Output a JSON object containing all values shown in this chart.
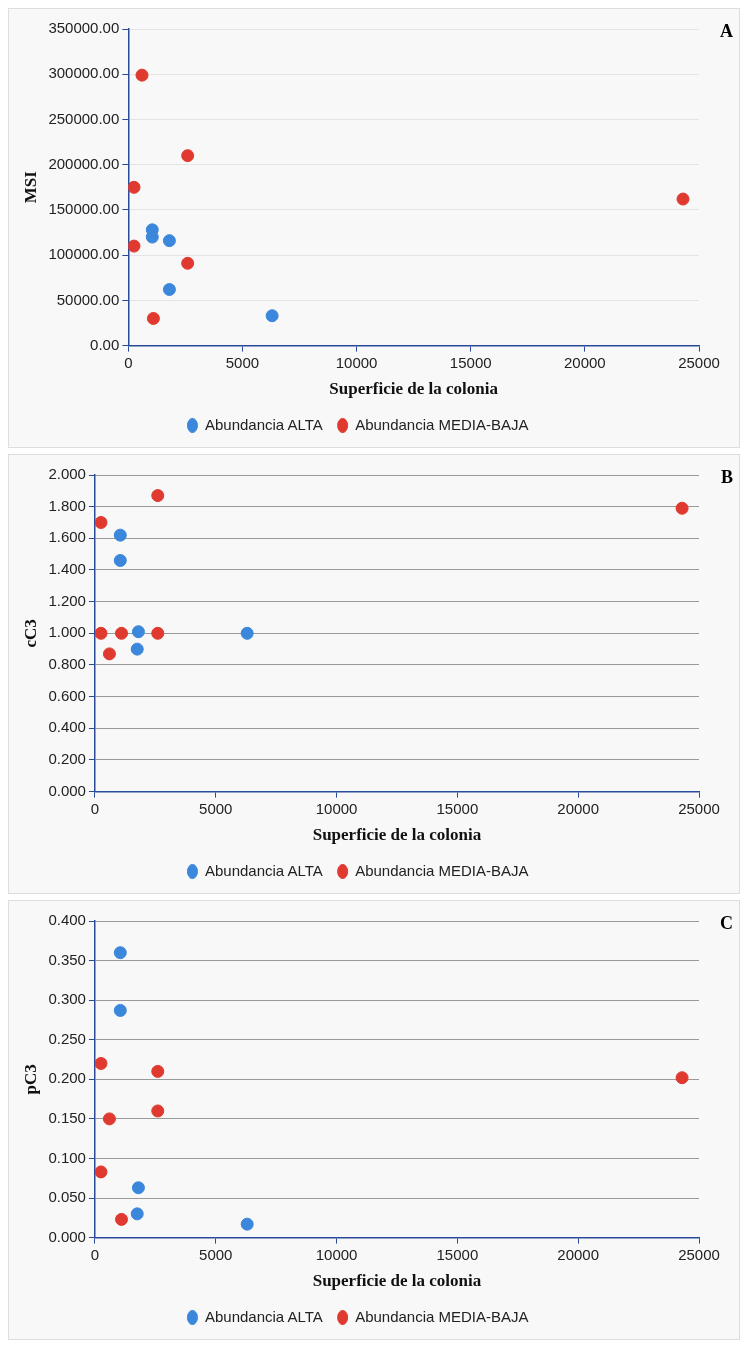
{
  "chart_data": [
    {
      "type": "scatter",
      "annotations": [
        "A"
      ],
      "xlabel": "Superficie de la colonia",
      "ylabel": "MSI",
      "xlim": [
        0,
        25000
      ],
      "xticks": [
        0,
        5000,
        10000,
        15000,
        20000,
        25000
      ],
      "ylim": [
        0,
        350000
      ],
      "yticks": [
        {
          "value": 0,
          "label": "0.00"
        },
        {
          "value": 50000,
          "label": "50000.00"
        },
        {
          "value": 100000,
          "label": "100000.00"
        },
        {
          "value": 150000,
          "label": "150000.00"
        },
        {
          "value": 200000,
          "label": "200000.00"
        },
        {
          "value": 250000,
          "label": "250000.00"
        },
        {
          "value": 300000,
          "label": "300000.00"
        },
        {
          "value": 350000,
          "label": "350000.00"
        }
      ],
      "grid": "y",
      "legend": "bottom",
      "marker": "circle",
      "series": [
        {
          "name": "Abundancia ALTA",
          "color": "#3a87dc",
          "x": [
            1050,
            1050,
            1800,
            1800,
            6300
          ],
          "values": [
            128000,
            120000,
            116000,
            62000,
            33000
          ]
        },
        {
          "name": "Abundancia MEDIA-BAJA",
          "color": "#e03a30",
          "x": [
            600,
            2600,
            250,
            250,
            2600,
            1100,
            24300
          ],
          "values": [
            299000,
            210000,
            175000,
            110000,
            91000,
            30000,
            162000
          ]
        }
      ]
    },
    {
      "type": "scatter",
      "annotations": [
        "B"
      ],
      "xlabel": "Superficie de la colonia",
      "ylabel": "cC3",
      "xlim": [
        0,
        25000
      ],
      "xticks": [
        0,
        5000,
        10000,
        15000,
        20000,
        25000
      ],
      "ylim": [
        0,
        2
      ],
      "yticks": [
        {
          "value": 0,
          "label": "0.000"
        },
        {
          "value": 0.2,
          "label": "0.200"
        },
        {
          "value": 0.4,
          "label": "0.400"
        },
        {
          "value": 0.6,
          "label": "0.600"
        },
        {
          "value": 0.8,
          "label": "0.800"
        },
        {
          "value": 1,
          "label": "1.000"
        },
        {
          "value": 1.2,
          "label": "1.200"
        },
        {
          "value": 1.4,
          "label": "1.400"
        },
        {
          "value": 1.6,
          "label": "1.600"
        },
        {
          "value": 1.8,
          "label": "1.800"
        },
        {
          "value": 2,
          "label": "2.000"
        }
      ],
      "grid": "y",
      "legend": "bottom",
      "marker": "circle",
      "series": [
        {
          "name": "Abundancia ALTA",
          "color": "#3a87dc",
          "x": [
            1050,
            1050,
            1800,
            1750,
            6300
          ],
          "values": [
            1.62,
            1.46,
            1.01,
            0.9,
            1.0
          ]
        },
        {
          "name": "Abundancia MEDIA-BAJA",
          "color": "#e03a30",
          "x": [
            250,
            2600,
            250,
            1100,
            2600,
            600,
            24300
          ],
          "values": [
            1.7,
            1.87,
            1.0,
            1.0,
            1.0,
            0.87,
            1.79
          ]
        }
      ]
    },
    {
      "type": "scatter",
      "annotations": [
        "C"
      ],
      "xlabel": "Superficie de la colonia",
      "ylabel": "pC3",
      "xlim": [
        0,
        25000
      ],
      "xticks": [
        0,
        5000,
        10000,
        15000,
        20000,
        25000
      ],
      "ylim": [
        0,
        0.4
      ],
      "yticks": [
        {
          "value": 0,
          "label": "0.000"
        },
        {
          "value": 0.05,
          "label": "0.050"
        },
        {
          "value": 0.1,
          "label": "0.100"
        },
        {
          "value": 0.15,
          "label": "0.150"
        },
        {
          "value": 0.2,
          "label": "0.200"
        },
        {
          "value": 0.25,
          "label": "0.250"
        },
        {
          "value": 0.3,
          "label": "0.300"
        },
        {
          "value": 0.35,
          "label": "0.350"
        },
        {
          "value": 0.4,
          "label": "0.400"
        }
      ],
      "grid": "y",
      "legend": "bottom",
      "marker": "circle",
      "series": [
        {
          "name": "Abundancia ALTA",
          "color": "#3a87dc",
          "x": [
            1050,
            1050,
            1800,
            1750,
            6300
          ],
          "values": [
            0.36,
            0.287,
            0.063,
            0.03,
            0.017
          ]
        },
        {
          "name": "Abundancia MEDIA-BAJA",
          "color": "#e03a30",
          "x": [
            250,
            2600,
            600,
            2600,
            250,
            1100,
            24300
          ],
          "values": [
            0.22,
            0.21,
            0.15,
            0.16,
            0.083,
            0.023,
            0.202
          ]
        }
      ]
    }
  ]
}
